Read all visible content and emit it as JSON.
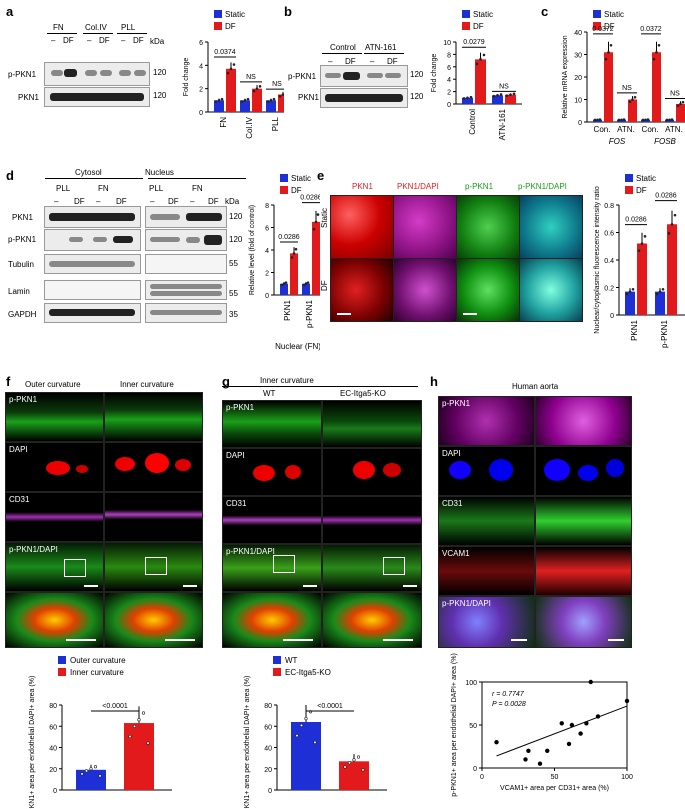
{
  "colors": {
    "static": "#1f2fd6",
    "df": "#e31a1c",
    "outer": "#1f2fd6",
    "inner": "#e31a1c",
    "wt": "#1f2fd6",
    "ko": "#e31a1c"
  },
  "panels": {
    "a": "a",
    "b": "b",
    "c": "c",
    "d": "d",
    "e": "e",
    "f": "f",
    "g": "g",
    "h": "h"
  },
  "legend": {
    "static": "Static",
    "df": "DF"
  },
  "a": {
    "groups": [
      "FN",
      "Col.IV",
      "PLL"
    ],
    "lanes": [
      "–",
      "DF",
      "–",
      "DF",
      "–",
      "DF"
    ],
    "kda": "kDa",
    "rows": [
      "p-PKN1",
      "PKN1"
    ],
    "mw": [
      "120",
      "120"
    ]
  },
  "b": {
    "groups": [
      "Control",
      "ATN-161"
    ],
    "lanes": [
      "–",
      "DF",
      "–",
      "DF"
    ],
    "kda": "kDa",
    "rows": [
      "p-PKN1",
      "PKN1"
    ],
    "mw": [
      "120",
      "120"
    ]
  },
  "d": {
    "groups": [
      "Cytosol",
      "Nucleus"
    ],
    "subgroups": [
      "PLL",
      "FN",
      "PLL",
      "FN"
    ],
    "lanes": [
      "–",
      "DF",
      "–",
      "DF",
      "–",
      "DF",
      "–",
      "DF"
    ],
    "kda": "kDa",
    "rows": [
      "PKN1",
      "p-PKN1",
      "Tubulin",
      "Lamin",
      "GAPDH"
    ],
    "mw": [
      "120",
      "120",
      "55",
      "55",
      "35"
    ]
  },
  "e": {
    "cols": [
      "PKN1",
      "PKN1/DAPI",
      "p-PKN1",
      "p-PKN1/DAPI"
    ],
    "rows": [
      "Static",
      "DF"
    ]
  },
  "f": {
    "cols": [
      "Outer curvature",
      "Inner curvature"
    ],
    "rows": [
      "p-PKN1",
      "DAPI",
      "CD31",
      "p-PKN1/DAPI"
    ]
  },
  "g": {
    "header": "Inner curvature",
    "cols": [
      "WT",
      "EC-Itga5-KO"
    ],
    "rows": [
      "p-PKN1",
      "DAPI",
      "CD31",
      "p-PKN1/DAPI"
    ]
  },
  "h": {
    "header": "Human aorta",
    "rows": [
      "p-PKN1",
      "DAPI",
      "CD31",
      "VCAM1",
      "p-PKN1/DAPI"
    ]
  },
  "chart_data": [
    {
      "type": "bar",
      "panel": "a",
      "categories": [
        "FN",
        "Col.IV",
        "PLL"
      ],
      "series": [
        {
          "name": "Static",
          "values": [
            1.0,
            1.0,
            1.0
          ]
        },
        {
          "name": "DF",
          "values": [
            3.7,
            2.0,
            1.5
          ]
        }
      ],
      "ylabel": "Fold change",
      "ylim": [
        0,
        6
      ],
      "yticks": [
        0,
        2,
        4,
        6
      ],
      "annotations": [
        "0.0374",
        "NS",
        "NS"
      ],
      "legend": "top"
    },
    {
      "type": "bar",
      "panel": "b",
      "categories": [
        "Control",
        "ATN-161"
      ],
      "series": [
        {
          "name": "Static",
          "values": [
            1.0,
            1.4
          ]
        },
        {
          "name": "DF",
          "values": [
            7.2,
            1.5
          ]
        }
      ],
      "ylabel": "Fold change",
      "ylim": [
        0,
        10
      ],
      "yticks": [
        0,
        2,
        4,
        6,
        8,
        10
      ],
      "annotations": [
        "0.0279",
        "NS"
      ],
      "legend": "top"
    },
    {
      "type": "bar",
      "panel": "c",
      "categories": [
        "Con.",
        "ATN.",
        "Con.",
        "ATN."
      ],
      "groups": [
        "FOS",
        "FOSB"
      ],
      "series": [
        {
          "name": "Static",
          "values": [
            1,
            1,
            1,
            1
          ]
        },
        {
          "name": "DF",
          "values": [
            31,
            10,
            31,
            8
          ]
        }
      ],
      "ylabel": "Relative mRNA expression",
      "ylim": [
        0,
        40
      ],
      "yticks": [
        0,
        10,
        20,
        30,
        40
      ],
      "annotations": [
        "0.0372",
        "NS",
        "0.0372",
        "NS"
      ],
      "legend": "top"
    },
    {
      "type": "bar",
      "panel": "d",
      "categories": [
        "PKN1",
        "p-PKN1"
      ],
      "series": [
        {
          "name": "Static",
          "values": [
            1.0,
            1.0
          ]
        },
        {
          "name": "DF",
          "values": [
            3.7,
            6.5
          ]
        }
      ],
      "ylabel": "Relative level (fold of control)",
      "xlabel": "Nuclear (FN)",
      "ylim": [
        0,
        8
      ],
      "yticks": [
        0,
        2,
        4,
        6,
        8
      ],
      "annotations": [
        "0.0286",
        "0.0286"
      ],
      "legend": "top"
    },
    {
      "type": "bar",
      "panel": "e",
      "categories": [
        "PKN1",
        "p-PKN1"
      ],
      "series": [
        {
          "name": "Static",
          "values": [
            0.17,
            0.17
          ]
        },
        {
          "name": "DF",
          "values": [
            0.52,
            0.66
          ]
        }
      ],
      "ylabel": "Nuclear/cytoplasmic fluorescence intensity ratio",
      "ylim": [
        0,
        0.8
      ],
      "yticks": [
        "0",
        "0.2",
        "0.4",
        "0.6",
        "0.8"
      ],
      "annotations": [
        "0.0286",
        "0.0286"
      ],
      "legend": "top"
    },
    {
      "type": "bar",
      "panel": "f",
      "categories": [
        "Outer curvature",
        "Inner curvature"
      ],
      "values": [
        19,
        63
      ],
      "ylabel": "p-PKN1+ area per endothelial DAPI+ area (%)",
      "ylim": [
        0,
        80
      ],
      "yticks": [
        0,
        20,
        40,
        60,
        80
      ],
      "annotations": [
        "<0.0001"
      ],
      "legend": "top"
    },
    {
      "type": "bar",
      "panel": "g",
      "categories": [
        "WT",
        "EC-Itga5-KO"
      ],
      "values": [
        64,
        27
      ],
      "ylabel": "p-PKN1+ area per endothelial DAPI+ area (%)",
      "ylim": [
        0,
        80
      ],
      "yticks": [
        0,
        20,
        40,
        60,
        80
      ],
      "annotations": [
        "<0.0001"
      ],
      "legend": "top"
    },
    {
      "type": "scatter",
      "panel": "h",
      "x": [
        10,
        30,
        32,
        40,
        45,
        55,
        60,
        62,
        68,
        72,
        75,
        80,
        100
      ],
      "y": [
        30,
        10,
        20,
        5,
        20,
        52,
        28,
        50,
        40,
        52,
        100,
        60,
        78
      ],
      "xlabel": "VCAM1+ area per CD31+ area (%)",
      "ylabel": "p-PKN1+ area per endothelial DAPI+ area (%)",
      "xlim": [
        0,
        100
      ],
      "ylim": [
        0,
        100
      ],
      "xticks": [
        0,
        50,
        100
      ],
      "yticks": [
        0,
        50,
        100
      ],
      "annotations": [
        "r = 0.7747",
        "P = 0.0028"
      ]
    }
  ]
}
